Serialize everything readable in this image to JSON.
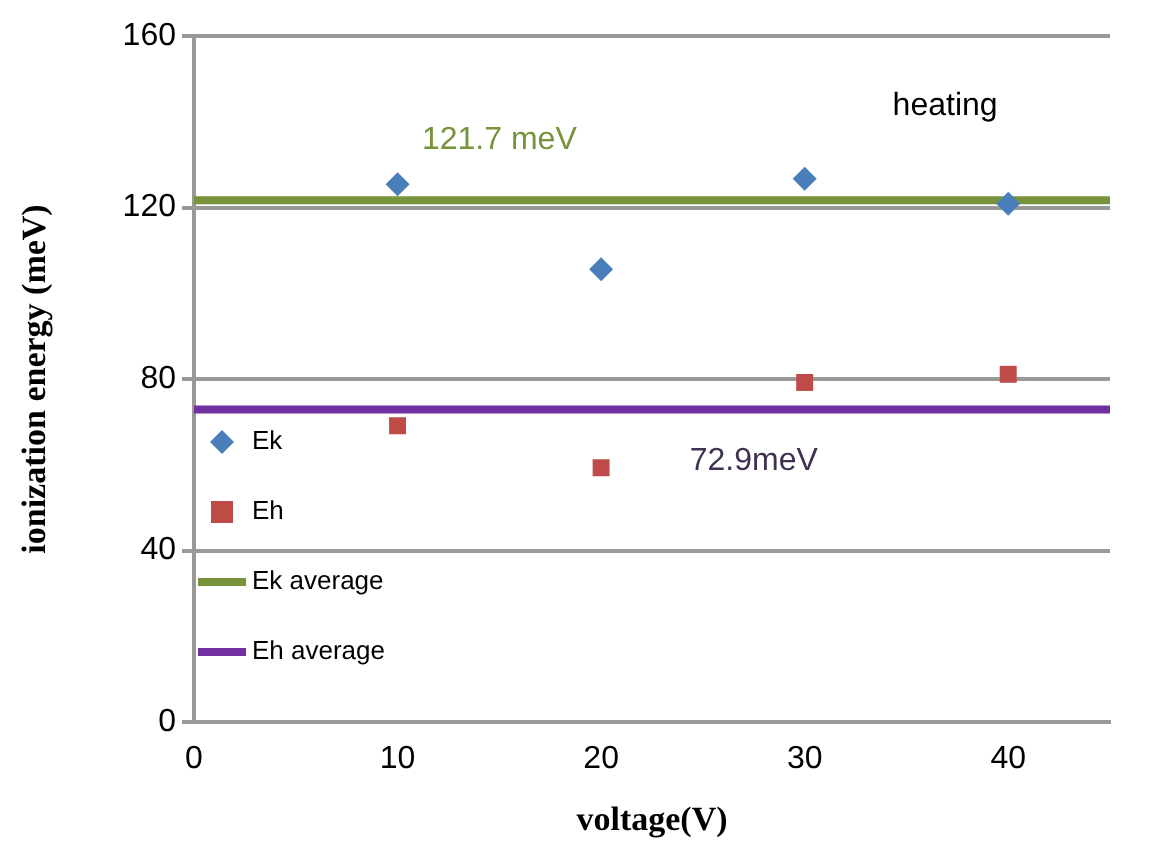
{
  "chart_data": {
    "type": "scatter",
    "xlabel": "voltage(V)",
    "ylabel": "ionization energy (meV)",
    "xlim": [
      0,
      45
    ],
    "xticks": [
      0,
      10,
      20,
      30,
      40
    ],
    "ylim": [
      0,
      160
    ],
    "yticks": [
      0,
      40,
      80,
      120,
      160
    ],
    "grid": "y",
    "legend": "left",
    "series": [
      {
        "name": "Ek",
        "color": "#4a7ebb",
        "marker": "diamond",
        "x": [
          10,
          20,
          30,
          40
        ],
        "values": [
          125.4,
          105.6,
          126.7,
          120.9
        ]
      },
      {
        "name": "Eh",
        "color": "#be4b48",
        "marker": "square",
        "x": [
          10,
          20,
          30,
          40
        ],
        "values": [
          69.1,
          59.3,
          79.2,
          81.1
        ]
      },
      {
        "name": "Ek average",
        "type": "line",
        "color": "#77933c",
        "marker": "none",
        "x": [
          0,
          45
        ],
        "values": [
          121.7,
          121.7
        ]
      },
      {
        "name": "Eh average",
        "type": "line",
        "color": "#7030a0",
        "marker": "none",
        "x": [
          0,
          45
        ],
        "values": [
          72.9,
          72.9
        ]
      }
    ],
    "annotations": [
      {
        "text": "121.7 meV",
        "x": 15,
        "y": 121.7
      },
      {
        "text": "72.9meV",
        "x": 27.5,
        "y": 72.9
      },
      "heating"
    ]
  }
}
